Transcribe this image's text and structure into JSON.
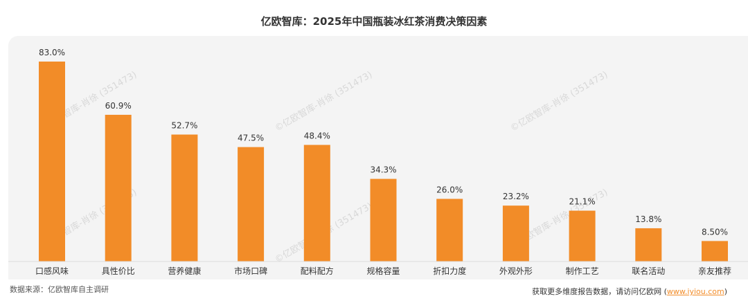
{
  "watermark": "©亿欧智库-肖徐 (351473)",
  "footer": {
    "source": "数据来源：亿欧智库自主调研",
    "more_prefix": "获取更多维度报告数据，请访问亿欧网 (",
    "more_link": "www.iyiou.com",
    "more_suffix": ")"
  },
  "chart_data": {
    "type": "bar",
    "title": "亿欧智库：2025年中国瓶装冰红茶消费决策因素",
    "categories": [
      "口感风味",
      "具性价比",
      "营养健康",
      "市场口碑",
      "配料配方",
      "规格容量",
      "折扣力度",
      "外观外形",
      "制作工艺",
      "联名活动",
      "亲友推荐"
    ],
    "values": [
      83.0,
      60.9,
      52.7,
      47.5,
      48.4,
      34.3,
      26.0,
      23.2,
      21.1,
      13.8,
      8.5
    ],
    "labels": [
      "83.0%",
      "60.9%",
      "52.7%",
      "47.5%",
      "48.4%",
      "34.3%",
      "26.0%",
      "23.2%",
      "21.1%",
      "13.8%",
      "8.50%"
    ],
    "bar_color": "#f28c28",
    "ylim": [
      0,
      83
    ],
    "grid": false,
    "legend": "none"
  }
}
